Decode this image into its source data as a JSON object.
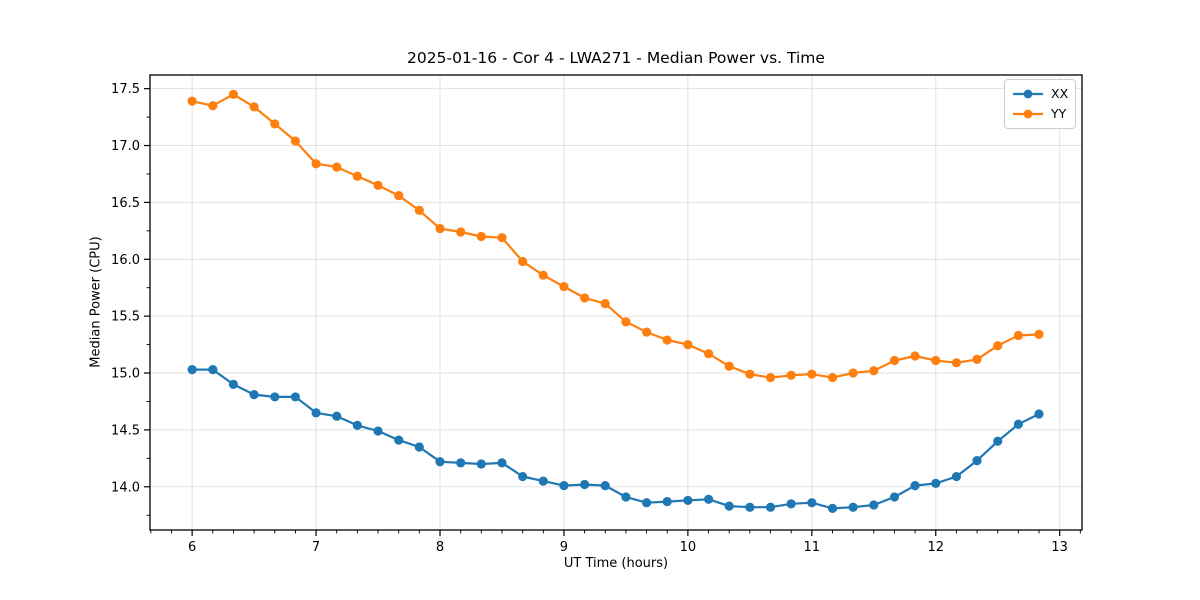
{
  "figure": {
    "title": "2025-01-16 - Cor 4 - LWA271 - Median Power vs. Time"
  },
  "chart_data": {
    "type": "line",
    "title": "2025-01-16 - Cor 4 - LWA271 - Median Power vs. Time",
    "xlabel": "UT Time (hours)",
    "ylabel": "Median Power (CPU)",
    "xlim": [
      5.66,
      13.18
    ],
    "ylim": [
      13.62,
      17.62
    ],
    "xticks": [
      6,
      7,
      8,
      9,
      10,
      11,
      12,
      13
    ],
    "yticks": [
      14.0,
      14.5,
      15.0,
      15.5,
      16.0,
      16.5,
      17.0,
      17.5
    ],
    "x_minor_step": 0.1666667,
    "y_minor_step": 0.25,
    "grid": "major-only",
    "grid_color": "#e2e2e2",
    "legend_position": "upper-right",
    "x": [
      6.0,
      6.167,
      6.333,
      6.5,
      6.667,
      6.833,
      7.0,
      7.167,
      7.333,
      7.5,
      7.667,
      7.833,
      8.0,
      8.167,
      8.333,
      8.5,
      8.667,
      8.833,
      9.0,
      9.167,
      9.333,
      9.5,
      9.667,
      9.833,
      10.0,
      10.167,
      10.333,
      10.5,
      10.667,
      10.833,
      11.0,
      11.167,
      11.333,
      11.5,
      11.667,
      11.833,
      12.0,
      12.167,
      12.333,
      12.5,
      12.667,
      12.833
    ],
    "series": [
      {
        "name": "XX",
        "color": "#1f77b4",
        "values": [
          15.03,
          15.03,
          14.9,
          14.81,
          14.79,
          14.79,
          14.65,
          14.62,
          14.54,
          14.49,
          14.41,
          14.35,
          14.22,
          14.21,
          14.2,
          14.21,
          14.09,
          14.05,
          14.01,
          14.02,
          14.01,
          13.91,
          13.86,
          13.87,
          13.88,
          13.89,
          13.83,
          13.82,
          13.82,
          13.85,
          13.86,
          13.81,
          13.82,
          13.84,
          13.91,
          14.01,
          14.03,
          14.09,
          14.23,
          14.4,
          14.55,
          14.64
        ]
      },
      {
        "name": "YY",
        "color": "#ff7f0e",
        "values": [
          17.39,
          17.35,
          17.45,
          17.34,
          17.19,
          17.04,
          16.84,
          16.81,
          16.73,
          16.65,
          16.56,
          16.43,
          16.27,
          16.24,
          16.2,
          16.19,
          15.98,
          15.86,
          15.76,
          15.66,
          15.61,
          15.45,
          15.36,
          15.29,
          15.25,
          15.17,
          15.06,
          14.99,
          14.96,
          14.98,
          14.99,
          14.96,
          15.0,
          15.02,
          15.11,
          15.15,
          15.11,
          15.09,
          15.12,
          15.24,
          15.33,
          15.34
        ]
      }
    ]
  }
}
